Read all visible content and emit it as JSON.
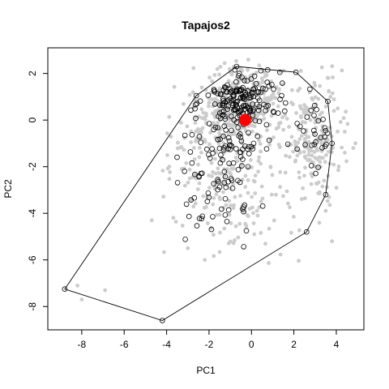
{
  "chart_data": {
    "type": "scatter",
    "title": "Tapajos2",
    "xlabel": "PC1",
    "ylabel": "PC2",
    "xlim": [
      -9.6,
      5.3
    ],
    "ylim": [
      -9.0,
      3.1
    ],
    "xticks": [
      -8,
      -6,
      -4,
      -2,
      0,
      2,
      4
    ],
    "yticks": [
      -8,
      -6,
      -4,
      -2,
      0,
      2
    ],
    "xtick_labels": [
      "-8",
      "-6",
      "-4",
      "-2",
      "0",
      "2",
      "4"
    ],
    "ytick_labels": [
      "-8",
      "-6",
      "-4",
      "-2",
      "0",
      "2"
    ],
    "grid": false,
    "colors": {
      "background_points": "#cccccc",
      "sample_points": "#000000",
      "centroid": "#ff0000",
      "hull": "#000000"
    },
    "hull": [
      [
        -8.8,
        -7.25
      ],
      [
        -4.2,
        -8.6
      ],
      [
        2.6,
        -4.8
      ],
      [
        3.5,
        -3.2
      ],
      [
        3.8,
        -1.0
      ],
      [
        3.6,
        0.8
      ],
      [
        2.1,
        2.05
      ],
      [
        -0.7,
        2.3
      ],
      [
        -2.6,
        1.05
      ]
    ],
    "centroid": {
      "x": -0.3,
      "y": 0.0
    },
    "series": [
      {
        "role": "background",
        "seed": 12345,
        "count": 720
      },
      {
        "role": "samples",
        "seed": 67890,
        "count": 320
      }
    ]
  }
}
